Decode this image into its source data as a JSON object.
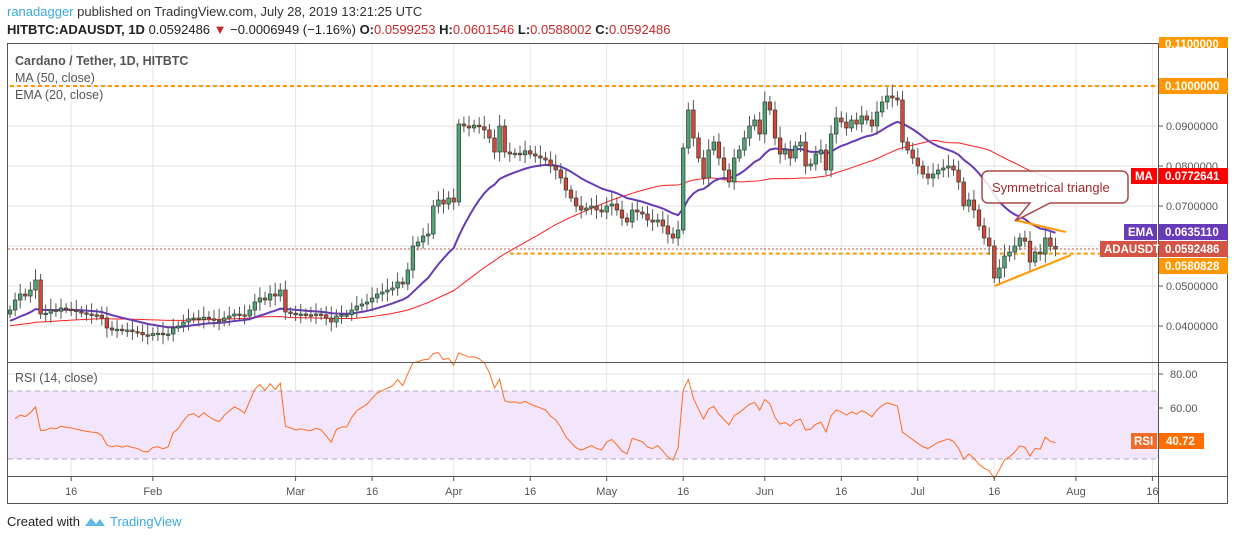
{
  "header": {
    "author": "ranadagger",
    "published_text": "published on TradingView.com, July 28, 2019 13:21:25 UTC",
    "symbol": "HITBTC:ADAUSDT, 1D",
    "last": "0.0592486",
    "change": "−0.0006949 (−1.16%)",
    "o_label": "O:",
    "o": "0.0599253",
    "h_label": "H:",
    "h": "0.0601546",
    "l_label": "L:",
    "l": "0.0588002",
    "c_label": "C:",
    "c": "0.0592486",
    "direction_icon": "triangle-down"
  },
  "legend": {
    "title": "Cardano / Tether, 1D, HITBTC",
    "ma": "MA (50, close)",
    "ema": "EMA (20, close)",
    "rsi": "RSI (14, close)"
  },
  "footer": {
    "created_with": "Created with",
    "brand": "TradingView"
  },
  "colors": {
    "up": "#53a37a",
    "down": "#d5473a",
    "ma": "#ff1e1e",
    "ema": "#673ab7",
    "rsi": "#ff6d1f",
    "level": "#ff9800",
    "price": "#d35445"
  },
  "chart_data": {
    "type": "candlestick",
    "start_date": "2019-01-04",
    "end_date": "2019-07-28",
    "ylim": [
      0.035,
      0.11
    ],
    "y_ticks": [
      "0.1000000",
      "0.0900000",
      "0.0800000",
      "0.0700000",
      "0.0500000",
      "0.0400000"
    ],
    "y_tick_values": [
      0.1,
      0.09,
      0.08,
      0.07,
      0.05,
      0.04
    ],
    "top_cut_label": "0.1100000",
    "x_ticks": [
      {
        "label": "16",
        "date": "2019-01-16"
      },
      {
        "label": "Feb",
        "date": "2019-02-01"
      },
      {
        "label": "Mar",
        "date": "2019-03-01"
      },
      {
        "label": "16",
        "date": "2019-03-16"
      },
      {
        "label": "Apr",
        "date": "2019-04-01"
      },
      {
        "label": "16",
        "date": "2019-04-16"
      },
      {
        "label": "May",
        "date": "2019-05-01"
      },
      {
        "label": "16",
        "date": "2019-05-16"
      },
      {
        "label": "Jun",
        "date": "2019-06-01"
      },
      {
        "label": "16",
        "date": "2019-06-16"
      },
      {
        "label": "Jul",
        "date": "2019-07-01"
      },
      {
        "label": "16",
        "date": "2019-07-16"
      },
      {
        "label": "Aug",
        "date": "2019-08-01"
      },
      {
        "label": "16",
        "date": "2019-08-16"
      }
    ],
    "first_open": 0.043,
    "closes": [
      0.044,
      0.0465,
      0.048,
      0.0475,
      0.049,
      0.0515,
      0.043,
      0.0432,
      0.044,
      0.0437,
      0.0445,
      0.0442,
      0.044,
      0.0436,
      0.0433,
      0.043,
      0.0428,
      0.0427,
      0.042,
      0.0395,
      0.039,
      0.0392,
      0.0388,
      0.039,
      0.0386,
      0.0384,
      0.0378,
      0.0376,
      0.0381,
      0.0382,
      0.0378,
      0.038,
      0.0395,
      0.04,
      0.041,
      0.0418,
      0.042,
      0.0416,
      0.0422,
      0.0418,
      0.0415,
      0.0413,
      0.042,
      0.0425,
      0.043,
      0.0428,
      0.0425,
      0.044,
      0.046,
      0.047,
      0.0465,
      0.048,
      0.0475,
      0.049,
      0.0435,
      0.0432,
      0.0428,
      0.043,
      0.0428,
      0.0427,
      0.043,
      0.0428,
      0.042,
      0.041,
      0.0425,
      0.0428,
      0.0428,
      0.044,
      0.045,
      0.0455,
      0.046,
      0.047,
      0.048,
      0.0485,
      0.049,
      0.0495,
      0.051,
      0.0505,
      0.054,
      0.06,
      0.061,
      0.0625,
      0.063,
      0.07,
      0.0715,
      0.0705,
      0.072,
      0.071,
      0.0905,
      0.09,
      0.0895,
      0.0902,
      0.0898,
      0.089,
      0.087,
      0.0835,
      0.09,
      0.0835,
      0.083,
      0.0832,
      0.0828,
      0.0838,
      0.083,
      0.0825,
      0.082,
      0.0815,
      0.08,
      0.079,
      0.077,
      0.074,
      0.072,
      0.07,
      0.069,
      0.0695,
      0.07,
      0.069,
      0.0685,
      0.07,
      0.0705,
      0.069,
      0.067,
      0.066,
      0.069,
      0.0685,
      0.068,
      0.0665,
      0.066,
      0.0665,
      0.065,
      0.063,
      0.062,
      0.064,
      0.0845,
      0.094,
      0.087,
      0.082,
      0.077,
      0.084,
      0.086,
      0.082,
      0.079,
      0.076,
      0.082,
      0.084,
      0.087,
      0.09,
      0.0915,
      0.088,
      0.096,
      0.094,
      0.087,
      0.083,
      0.084,
      0.082,
      0.085,
      0.086,
      0.08,
      0.0805,
      0.083,
      0.084,
      0.079,
      0.088,
      0.092,
      0.091,
      0.0895,
      0.0915,
      0.0905,
      0.0925,
      0.0915,
      0.09,
      0.0935,
      0.096,
      0.0975,
      0.097,
      0.0965,
      0.086,
      0.084,
      0.082,
      0.08,
      0.078,
      0.077,
      0.078,
      0.079,
      0.0795,
      0.08,
      0.079,
      0.076,
      0.07,
      0.0715,
      0.069,
      0.065,
      0.062,
      0.06,
      0.052,
      0.0545,
      0.0575,
      0.0585,
      0.06,
      0.062,
      0.0612,
      0.056,
      0.0585,
      0.058,
      0.062,
      0.0599253,
      0.0592486
    ],
    "horizontal_levels": [
      {
        "value": 0.1,
        "label": "0.1000000",
        "start_date": "2019-01-04"
      },
      {
        "value": 0.0580828,
        "label": "0.0580828",
        "start_date": "2019-04-12"
      }
    ],
    "price_labels": {
      "ma": {
        "name": "MA",
        "value": "0.0772641"
      },
      "ema": {
        "name": "EMA",
        "value": "0.0635110"
      },
      "last": {
        "name": "ADAUSDT",
        "value": "0.0592486"
      }
    },
    "annotation": {
      "text": "Symmetrical triangle"
    },
    "triangle": {
      "upper": [
        {
          "date": "2019-07-20",
          "value": 0.0665
        },
        {
          "date": "2019-07-30",
          "value": 0.0635
        }
      ],
      "lower": [
        {
          "date": "2019-07-16",
          "value": 0.05
        },
        {
          "date": "2019-07-31",
          "value": 0.0577
        }
      ]
    },
    "rsi": {
      "ylim": [
        20,
        88
      ],
      "y_ticks": [
        "80.00",
        "60.00"
      ],
      "y_tick_values": [
        80,
        60
      ],
      "band": [
        30,
        70
      ],
      "label": "RSI",
      "value": "40.72"
    }
  }
}
